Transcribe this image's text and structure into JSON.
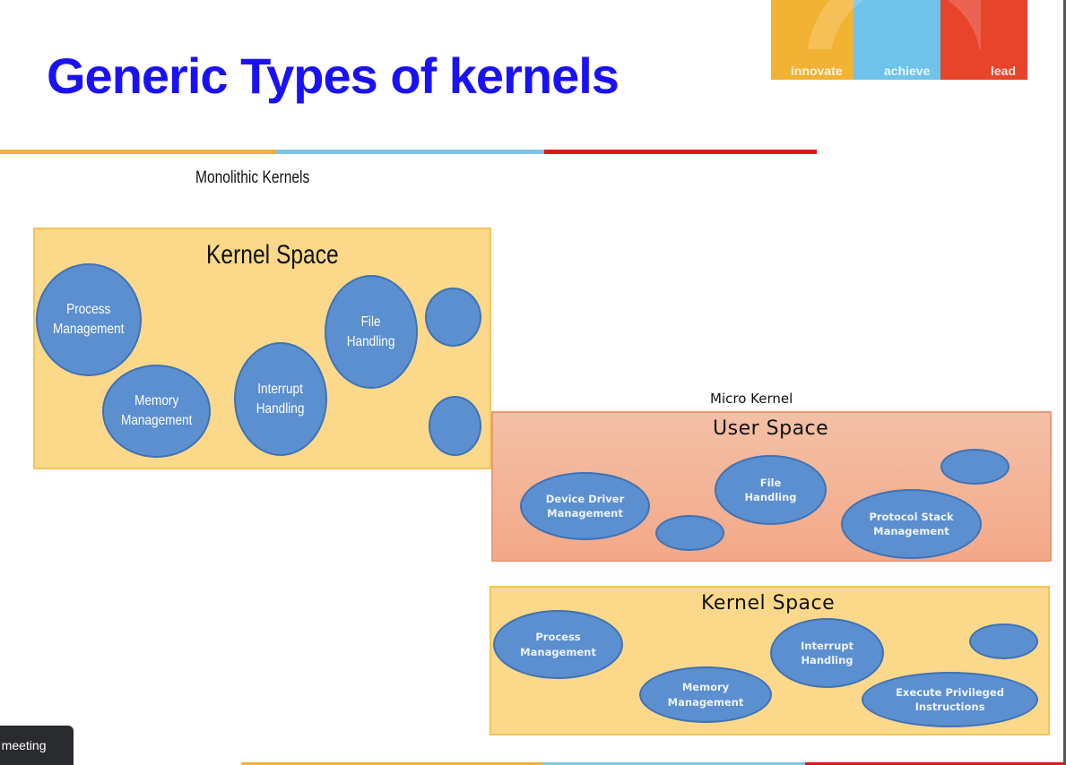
{
  "slide": {
    "title": "Generic Types of kernels"
  },
  "brand": {
    "segments": [
      {
        "label": "innovate",
        "color": "#f2b233"
      },
      {
        "label": "achieve",
        "color": "#6fc3ea"
      },
      {
        "label": "lead",
        "color": "#e8432b"
      }
    ]
  },
  "monolithic": {
    "caption": "Monolithic Kernels",
    "space_title": "Kernel Space",
    "blobs": [
      "Process\nManagement",
      "Memory\nManagement",
      "Interrupt\nHandling",
      "File\nHandling",
      "",
      ""
    ]
  },
  "micro": {
    "caption": "Micro Kernel",
    "user_space": {
      "title": "User Space",
      "blobs": [
        "Device Driver\nManagement",
        "",
        "File\nHandling",
        "Protocol Stack\nManagement",
        ""
      ]
    },
    "kernel_space": {
      "title": "Kernel Space",
      "blobs": [
        "Process\nManagement",
        "Memory\nManagement",
        "Interrupt\nHandling",
        "Execute Privileged\nInstructions",
        ""
      ]
    }
  },
  "toast": {
    "text": "e meeting"
  }
}
